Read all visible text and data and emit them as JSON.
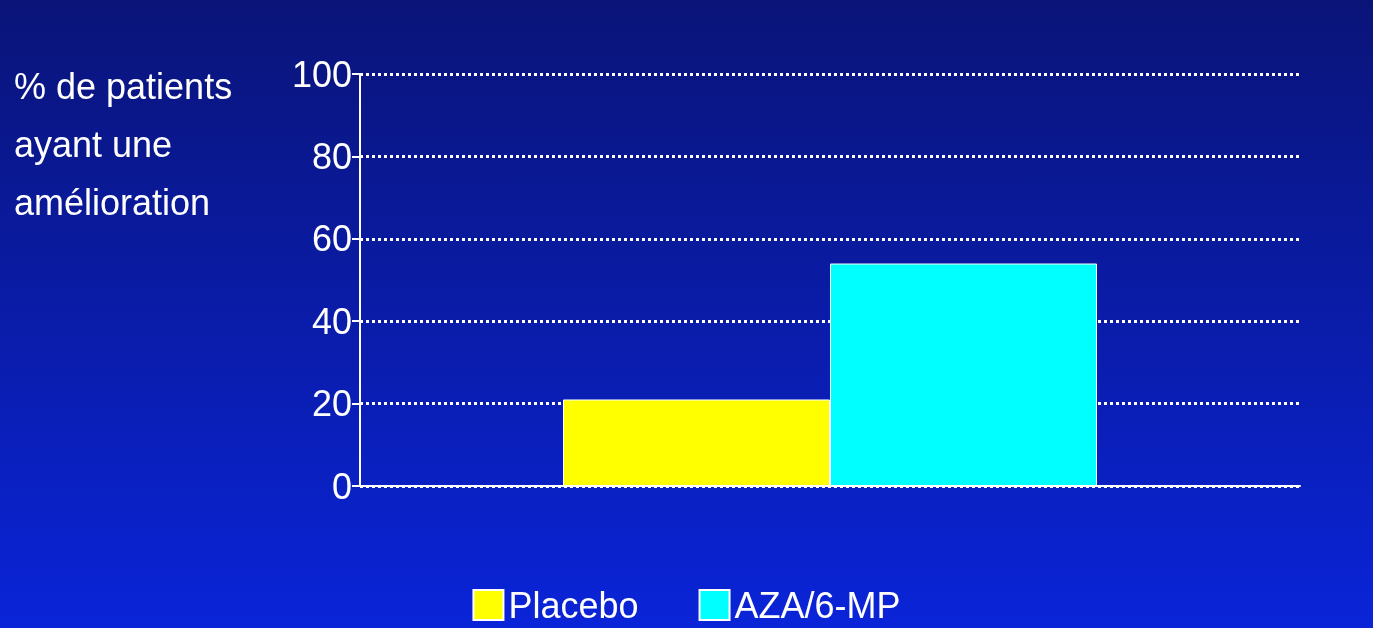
{
  "chart_data": {
    "type": "bar",
    "ylabel": "% de patients ayant une amélioration",
    "categories": [
      null
    ],
    "series": [
      {
        "name": "Placebo",
        "color": "#ffff00",
        "values": [
          21
        ]
      },
      {
        "name": "AZA/6-MP",
        "color": "#00ffff",
        "values": [
          54
        ]
      }
    ],
    "ylim": [
      0,
      100
    ],
    "yticks": [
      0,
      20,
      40,
      60,
      80,
      100
    ],
    "grid": "y",
    "legend": "bottom"
  }
}
